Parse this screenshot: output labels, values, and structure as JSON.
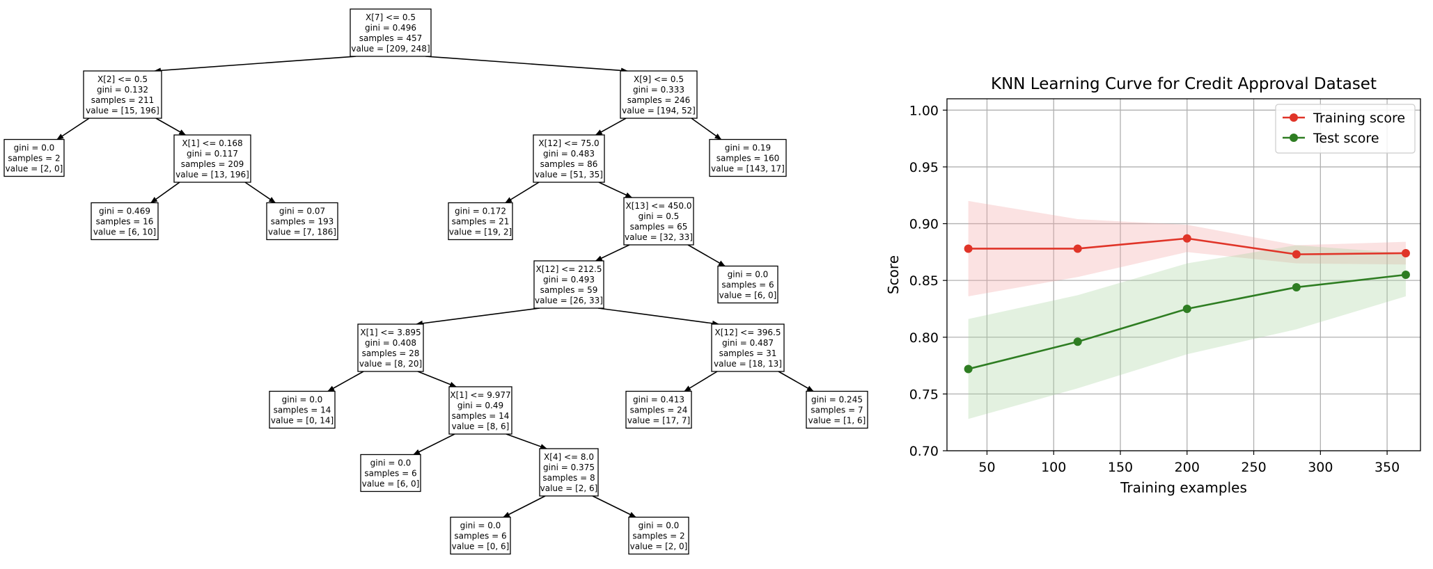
{
  "tree": {
    "nodes": [
      {
        "id": 0,
        "lines": [
          "X[7] <= 0.5",
          "gini = 0.496",
          "samples = 457",
          "value = [209, 248]"
        ]
      },
      {
        "id": 1,
        "lines": [
          "X[2] <= 0.5",
          "gini = 0.132",
          "samples = 211",
          "value = [15, 196]"
        ]
      },
      {
        "id": 2,
        "lines": [
          "gini = 0.0",
          "samples = 2",
          "value = [2, 0]"
        ]
      },
      {
        "id": 3,
        "lines": [
          "X[1] <= 0.168",
          "gini = 0.117",
          "samples = 209",
          "value = [13, 196]"
        ]
      },
      {
        "id": 4,
        "lines": [
          "gini = 0.469",
          "samples = 16",
          "value = [6, 10]"
        ]
      },
      {
        "id": 5,
        "lines": [
          "gini = 0.07",
          "samples = 193",
          "value = [7, 186]"
        ]
      },
      {
        "id": 6,
        "lines": [
          "X[9] <= 0.5",
          "gini = 0.333",
          "samples = 246",
          "value = [194, 52]"
        ]
      },
      {
        "id": 7,
        "lines": [
          "X[12] <= 75.0",
          "gini = 0.483",
          "samples = 86",
          "value = [51, 35]"
        ]
      },
      {
        "id": 8,
        "lines": [
          "gini = 0.172",
          "samples = 21",
          "value = [19, 2]"
        ]
      },
      {
        "id": 9,
        "lines": [
          "X[13] <= 450.0",
          "gini = 0.5",
          "samples = 65",
          "value = [32, 33]"
        ]
      },
      {
        "id": 10,
        "lines": [
          "X[12] <= 212.5",
          "gini = 0.493",
          "samples = 59",
          "value = [26, 33]"
        ]
      },
      {
        "id": 11,
        "lines": [
          "X[1] <= 3.895",
          "gini = 0.408",
          "samples = 28",
          "value = [8, 20]"
        ]
      },
      {
        "id": 12,
        "lines": [
          "gini = 0.0",
          "samples = 14",
          "value = [0, 14]"
        ]
      },
      {
        "id": 13,
        "lines": [
          "X[1] <= 9.977",
          "gini = 0.49",
          "samples = 14",
          "value = [8, 6]"
        ]
      },
      {
        "id": 14,
        "lines": [
          "gini = 0.0",
          "samples = 6",
          "value = [6, 0]"
        ]
      },
      {
        "id": 15,
        "lines": [
          "X[4] <= 8.0",
          "gini = 0.375",
          "samples = 8",
          "value = [2, 6]"
        ]
      },
      {
        "id": 16,
        "lines": [
          "gini = 0.0",
          "samples = 6",
          "value = [0, 6]"
        ]
      },
      {
        "id": 17,
        "lines": [
          "gini = 0.0",
          "samples = 2",
          "value = [2, 0]"
        ]
      },
      {
        "id": 18,
        "lines": [
          "X[12] <= 396.5",
          "gini = 0.487",
          "samples = 31",
          "value = [18, 13]"
        ]
      },
      {
        "id": 19,
        "lines": [
          "gini = 0.413",
          "samples = 24",
          "value = [17, 7]"
        ]
      },
      {
        "id": 20,
        "lines": [
          "gini = 0.245",
          "samples = 7",
          "value = [1, 6]"
        ]
      },
      {
        "id": 21,
        "lines": [
          "gini = 0.0",
          "samples = 6",
          "value = [6, 0]"
        ]
      },
      {
        "id": 22,
        "lines": [
          "gini = 0.19",
          "samples = 160",
          "value = [143, 17]"
        ]
      }
    ],
    "edges": [
      [
        0,
        1
      ],
      [
        1,
        2
      ],
      [
        1,
        3
      ],
      [
        3,
        4
      ],
      [
        3,
        5
      ],
      [
        0,
        6
      ],
      [
        6,
        7
      ],
      [
        7,
        8
      ],
      [
        7,
        9
      ],
      [
        9,
        10
      ],
      [
        10,
        11
      ],
      [
        11,
        12
      ],
      [
        11,
        13
      ],
      [
        13,
        14
      ],
      [
        13,
        15
      ],
      [
        15,
        16
      ],
      [
        15,
        17
      ],
      [
        10,
        18
      ],
      [
        18,
        19
      ],
      [
        18,
        20
      ],
      [
        9,
        21
      ],
      [
        6,
        22
      ]
    ]
  },
  "chart_data": {
    "type": "line",
    "title": "KNN Learning Curve for Credit Approval Dataset",
    "xlabel": "Training examples",
    "ylabel": "Score",
    "xlim": [
      20,
      375
    ],
    "ylim": [
      0.7,
      1.01
    ],
    "xticks": [
      50,
      100,
      150,
      200,
      250,
      300,
      350
    ],
    "yticks": [
      0.7,
      0.75,
      0.8,
      0.85,
      0.9,
      0.95,
      1.0
    ],
    "ytick_labels": [
      "0.70",
      "0.75",
      "0.80",
      "0.85",
      "0.90",
      "0.95",
      "1.00"
    ],
    "grid": true,
    "legend_position": "top-right",
    "x": [
      36,
      118,
      200,
      282,
      364
    ],
    "series": [
      {
        "name": "Training score",
        "color": "#e03428",
        "band_color": "#f4a5a5",
        "values": [
          0.878,
          0.878,
          0.887,
          0.873,
          0.874
        ],
        "lower": [
          0.836,
          0.853,
          0.875,
          0.865,
          0.864
        ],
        "upper": [
          0.92,
          0.904,
          0.899,
          0.881,
          0.884
        ]
      },
      {
        "name": "Test score",
        "color": "#2e7d22",
        "band_color": "#a8d4a0",
        "values": [
          0.772,
          0.796,
          0.825,
          0.844,
          0.855
        ],
        "lower": [
          0.728,
          0.755,
          0.785,
          0.807,
          0.836
        ],
        "upper": [
          0.816,
          0.837,
          0.865,
          0.881,
          0.874
        ]
      }
    ]
  }
}
